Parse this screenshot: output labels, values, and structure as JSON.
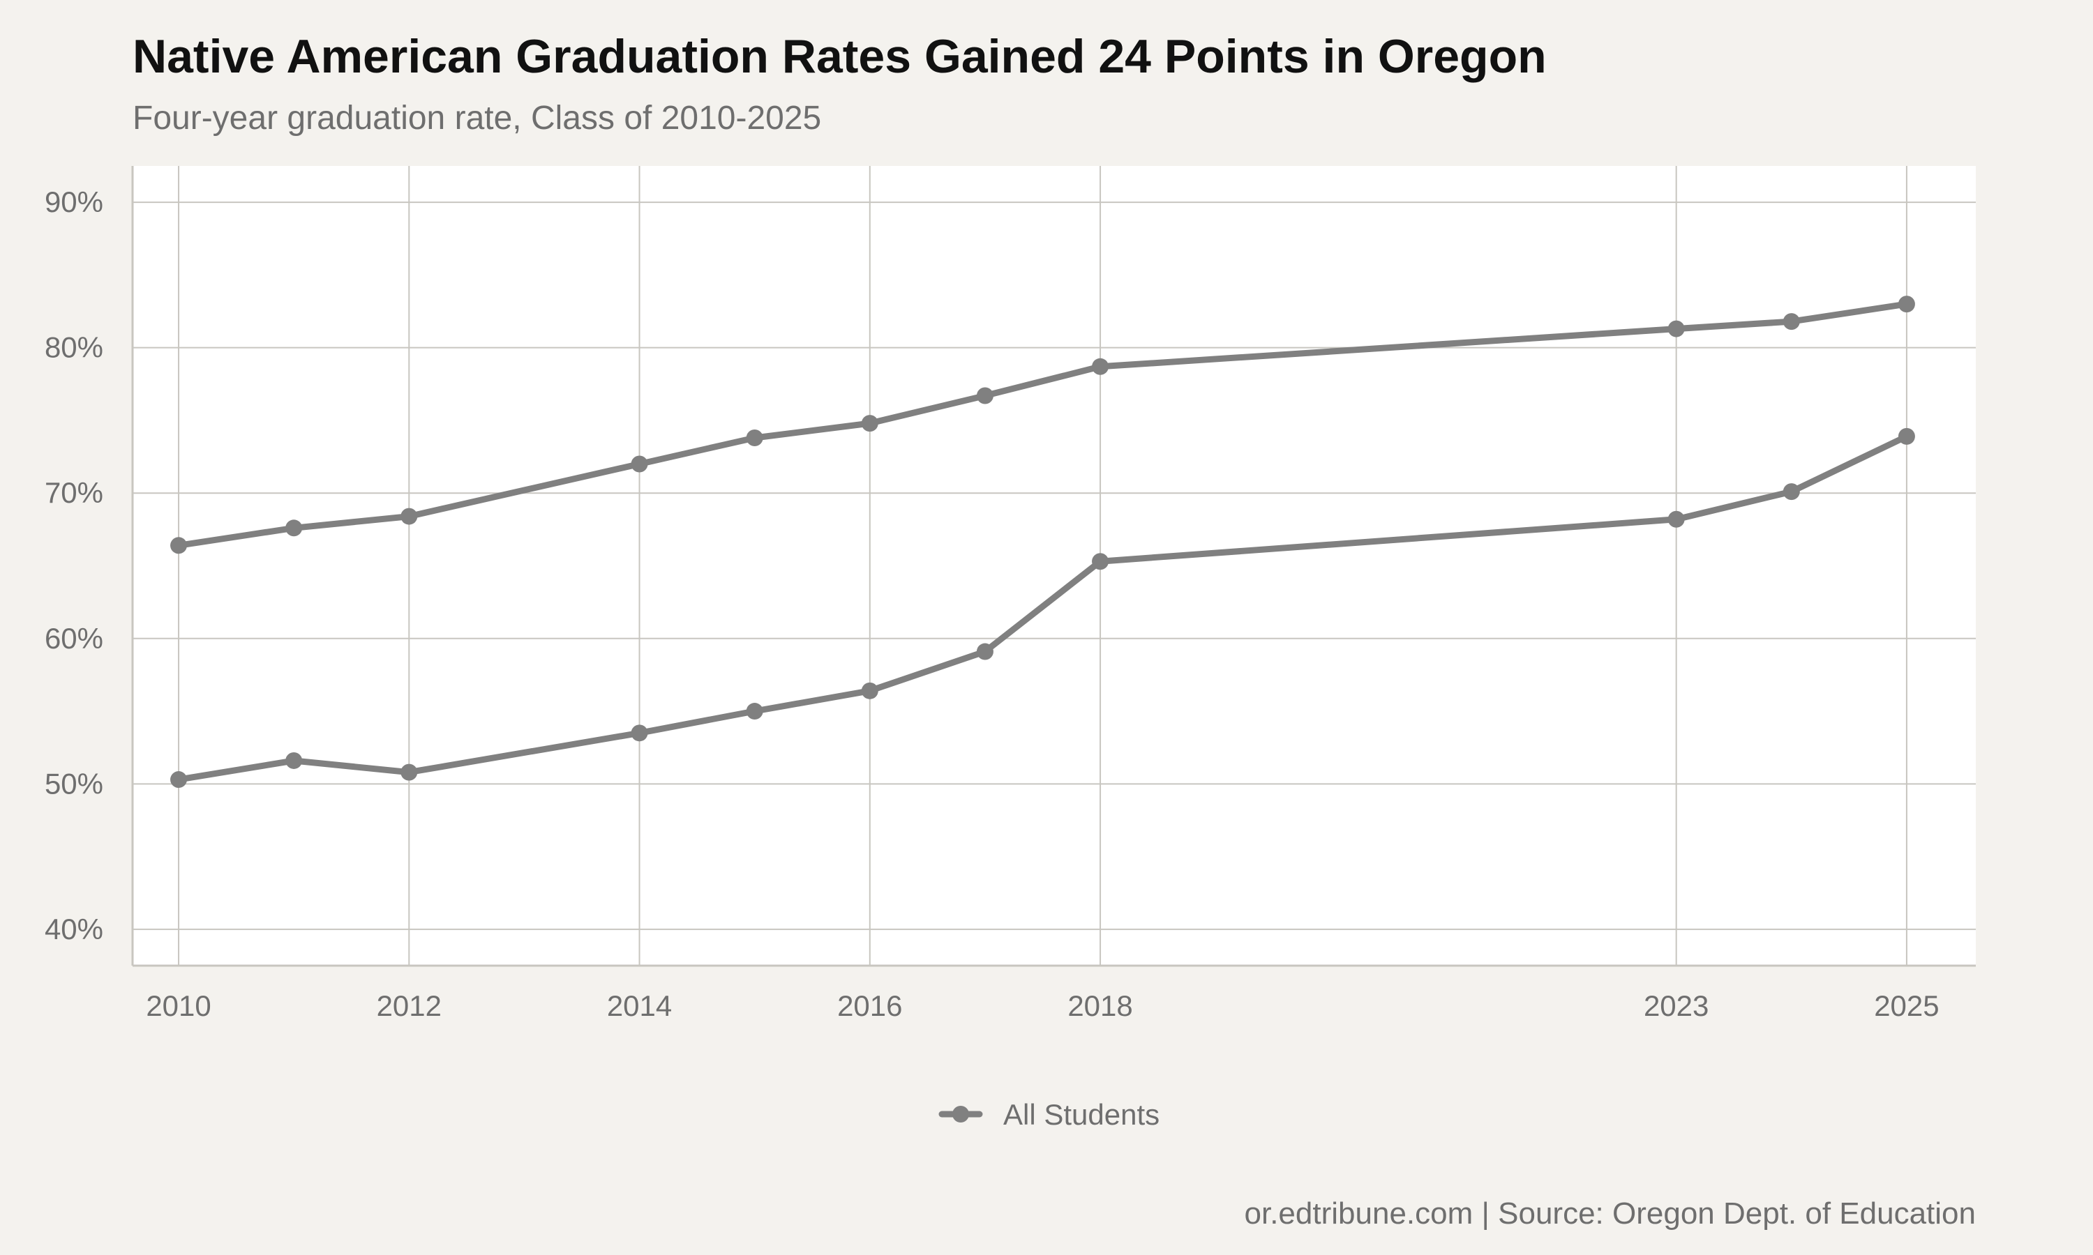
{
  "title": "Native American Graduation Rates Gained 24 Points in Oregon",
  "subtitle": "Four-year graduation rate, Class of 2010-2025",
  "caption": "or.edtribune.com | Source: Oregon Dept. of Education",
  "colors": {
    "background": "#f4f2ee",
    "panel": "#ffffff",
    "grid": "#c8c6c0",
    "series_line": "#808080"
  },
  "chart_data": {
    "type": "line",
    "title": "Native American Graduation Rates Gained 24 Points in Oregon",
    "subtitle": "Four-year graduation rate, Class of 2010-2025",
    "xlabel": "",
    "ylabel": "",
    "xlim": [
      2009.6,
      2025.6
    ],
    "ylim": [
      37.5,
      92.5
    ],
    "x_ticks": [
      2010,
      2012,
      2014,
      2016,
      2018,
      2023,
      2025
    ],
    "y_ticks": [
      40,
      50,
      60,
      70,
      80,
      90
    ],
    "y_tick_labels": [
      "40%",
      "50%",
      "60%",
      "70%",
      "80%",
      "90%"
    ],
    "grid": true,
    "legend_position": "bottom",
    "legend": [
      {
        "label": "All Students",
        "color": "#808080"
      }
    ],
    "series": [
      {
        "name": "All Students",
        "color": "#808080",
        "x": [
          2010,
          2011,
          2012,
          2014,
          2015,
          2016,
          2017,
          2018,
          2023,
          2024,
          2025
        ],
        "values": [
          66.4,
          67.6,
          68.4,
          72.0,
          73.8,
          74.8,
          76.7,
          78.7,
          81.3,
          81.8,
          83.0
        ]
      },
      {
        "color": "#808080",
        "x": [
          2010,
          2011,
          2012,
          2014,
          2015,
          2016,
          2017,
          2018,
          2023,
          2024,
          2025
        ],
        "values": [
          50.3,
          51.6,
          50.8,
          53.5,
          55.0,
          56.4,
          59.1,
          65.3,
          68.2,
          70.1,
          73.9
        ]
      }
    ]
  }
}
